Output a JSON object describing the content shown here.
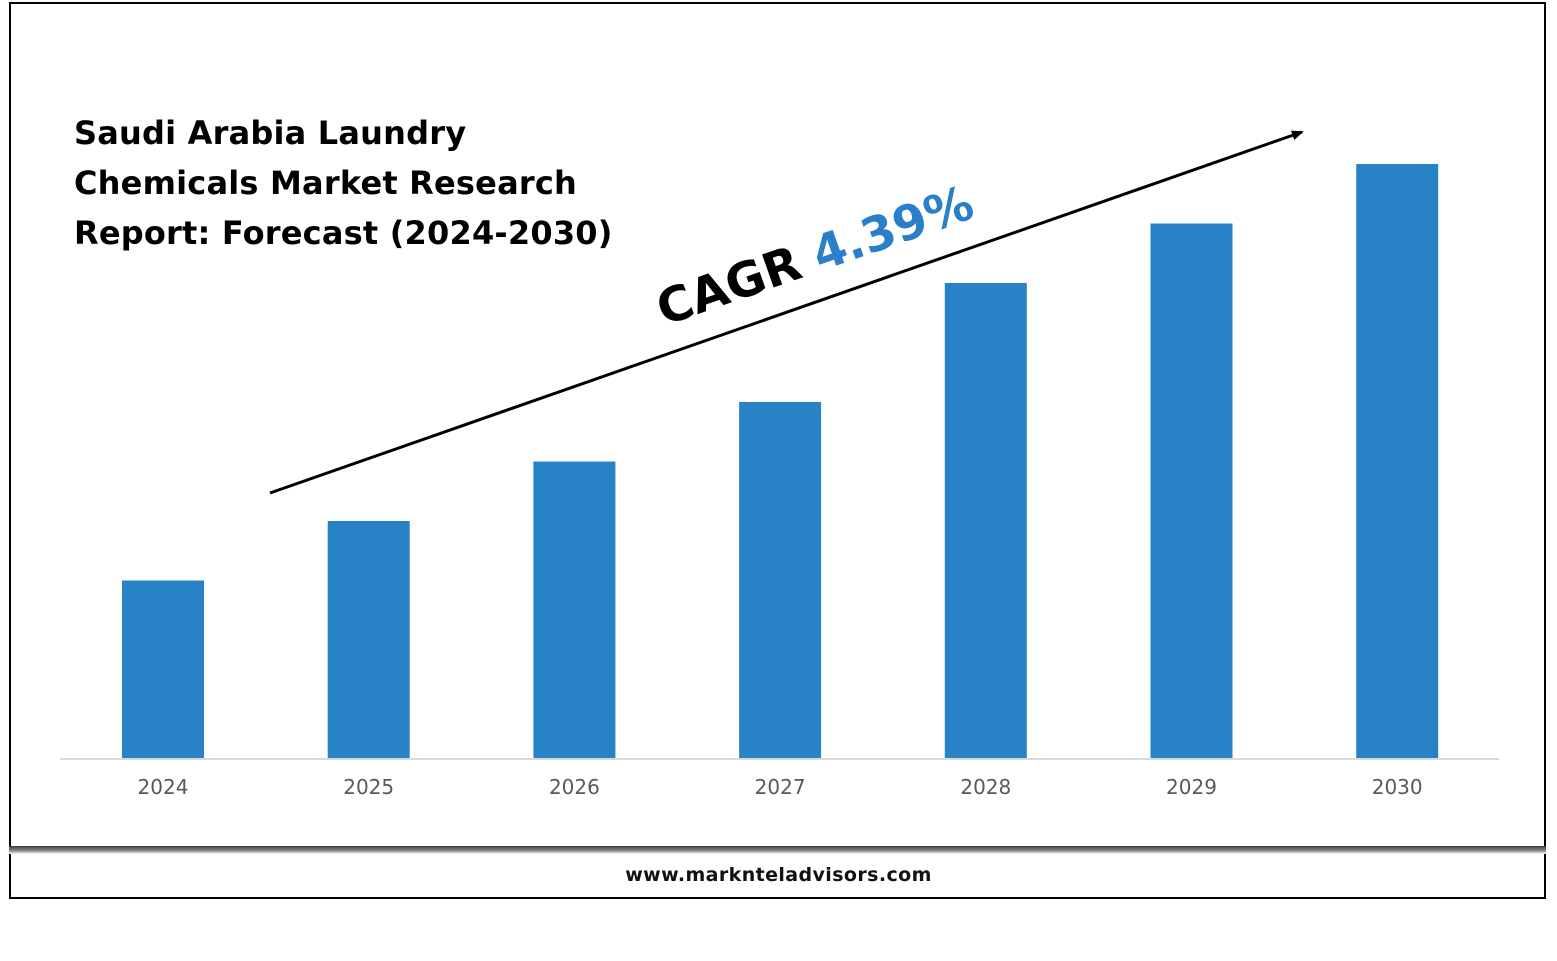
{
  "chart_data": {
    "type": "bar",
    "title": "Saudi Arabia Laundry Chemicals Market Research Report: Forecast (2024-2030)",
    "categories": [
      "2024",
      "2025",
      "2026",
      "2027",
      "2028",
      "2029",
      "2030"
    ],
    "values": [
      30,
      40,
      50,
      60,
      80,
      90,
      100
    ],
    "xlabel": "",
    "ylabel": "",
    "ylim": [
      0,
      100
    ],
    "grid": false,
    "legend": "none",
    "bar_color": "#2883c6",
    "annotation": {
      "label": "CAGR",
      "value": "4.39%",
      "value_color": "#2a7fc8"
    }
  },
  "footer": {
    "website": "www.marknteladvisors.com"
  },
  "icons": {
    "trend_arrow": "arrow-up-right-icon"
  }
}
